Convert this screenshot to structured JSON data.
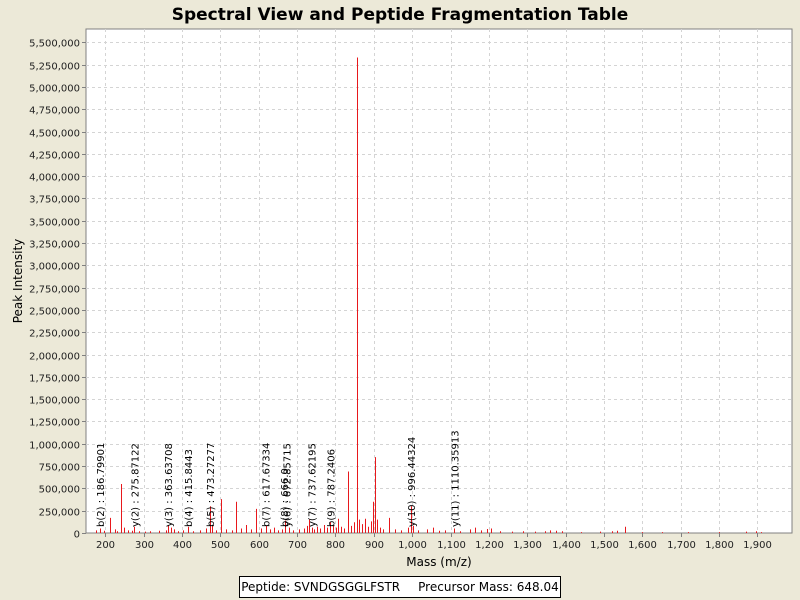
{
  "chart_data": {
    "type": "bar",
    "title": "Spectral View and Peptide Fragmentation Table",
    "xlabel": "Mass (m/z)",
    "ylabel": "Peak Intensity",
    "xlim": [
      150,
      1990
    ],
    "ylim": [
      0,
      5650000
    ],
    "xticks": [
      200,
      300,
      400,
      500,
      600,
      700,
      800,
      900,
      1000,
      1100,
      1200,
      1300,
      1400,
      1500,
      1600,
      1700,
      1800,
      1900
    ],
    "xtick_labels": [
      "200",
      "300",
      "400",
      "500",
      "600",
      "700",
      "800",
      "900",
      "1,000",
      "1,100",
      "1,200",
      "1,300",
      "1,400",
      "1,500",
      "1,600",
      "1,700",
      "1,800",
      "1,900"
    ],
    "yticks": [
      0,
      250000,
      500000,
      750000,
      1000000,
      1250000,
      1500000,
      1750000,
      2000000,
      2250000,
      2500000,
      2750000,
      3000000,
      3250000,
      3500000,
      3750000,
      4000000,
      4250000,
      4500000,
      4750000,
      5000000,
      5250000,
      5500000
    ],
    "ytick_labels": [
      "0",
      "250,000",
      "500,000",
      "750,000",
      "1,000,000",
      "1,250,000",
      "1,500,000",
      "1,750,000",
      "2,000,000",
      "2,250,000",
      "2,500,000",
      "2,750,000",
      "3,000,000",
      "3,250,000",
      "3,500,000",
      "3,750,000",
      "4,000,000",
      "4,250,000",
      "4,500,000",
      "4,750,000",
      "5,000,000",
      "5,250,000",
      "5,500,000"
    ],
    "grid": true,
    "peak_color": "#e8181c",
    "peaks": [
      {
        "mz": 175,
        "intensity": 30000
      },
      {
        "mz": 187,
        "intensity": 50000
      },
      {
        "mz": 196,
        "intensity": 25000
      },
      {
        "mz": 212,
        "intensity": 170000
      },
      {
        "mz": 225,
        "intensity": 40000
      },
      {
        "mz": 232,
        "intensity": 20000
      },
      {
        "mz": 241,
        "intensity": 550000
      },
      {
        "mz": 248,
        "intensity": 60000
      },
      {
        "mz": 259,
        "intensity": 30000
      },
      {
        "mz": 270,
        "intensity": 25000
      },
      {
        "mz": 276,
        "intensity": 70000
      },
      {
        "mz": 288,
        "intensity": 20000
      },
      {
        "mz": 305,
        "intensity": 15000
      },
      {
        "mz": 318,
        "intensity": 20000
      },
      {
        "mz": 340,
        "intensity": 25000
      },
      {
        "mz": 358,
        "intensity": 30000
      },
      {
        "mz": 364,
        "intensity": 90000
      },
      {
        "mz": 372,
        "intensity": 60000
      },
      {
        "mz": 380,
        "intensity": 40000
      },
      {
        "mz": 390,
        "intensity": 20000
      },
      {
        "mz": 402,
        "intensity": 30000
      },
      {
        "mz": 416,
        "intensity": 70000
      },
      {
        "mz": 430,
        "intensity": 20000
      },
      {
        "mz": 448,
        "intensity": 30000
      },
      {
        "mz": 462,
        "intensity": 50000
      },
      {
        "mz": 473,
        "intensity": 300000
      },
      {
        "mz": 478,
        "intensity": 80000
      },
      {
        "mz": 490,
        "intensity": 30000
      },
      {
        "mz": 503,
        "intensity": 380000
      },
      {
        "mz": 515,
        "intensity": 40000
      },
      {
        "mz": 530,
        "intensity": 30000
      },
      {
        "mz": 542,
        "intensity": 350000
      },
      {
        "mz": 555,
        "intensity": 50000
      },
      {
        "mz": 566,
        "intensity": 90000
      },
      {
        "mz": 580,
        "intensity": 40000
      },
      {
        "mz": 594,
        "intensity": 270000
      },
      {
        "mz": 606,
        "intensity": 50000
      },
      {
        "mz": 618,
        "intensity": 80000
      },
      {
        "mz": 630,
        "intensity": 40000
      },
      {
        "mz": 640,
        "intensity": 60000
      },
      {
        "mz": 651,
        "intensity": 30000
      },
      {
        "mz": 661,
        "intensity": 40000
      },
      {
        "mz": 668,
        "intensity": 140000
      },
      {
        "mz": 678,
        "intensity": 60000
      },
      {
        "mz": 690,
        "intensity": 30000
      },
      {
        "mz": 705,
        "intensity": 40000
      },
      {
        "mz": 718,
        "intensity": 50000
      },
      {
        "mz": 725,
        "intensity": 80000
      },
      {
        "mz": 730,
        "intensity": 150000
      },
      {
        "mz": 738,
        "intensity": 60000
      },
      {
        "mz": 745,
        "intensity": 40000
      },
      {
        "mz": 752,
        "intensity": 70000
      },
      {
        "mz": 760,
        "intensity": 50000
      },
      {
        "mz": 770,
        "intensity": 90000
      },
      {
        "mz": 778,
        "intensity": 60000
      },
      {
        "mz": 787,
        "intensity": 120000
      },
      {
        "mz": 795,
        "intensity": 80000
      },
      {
        "mz": 802,
        "intensity": 60000
      },
      {
        "mz": 808,
        "intensity": 160000
      },
      {
        "mz": 815,
        "intensity": 70000
      },
      {
        "mz": 822,
        "intensity": 50000
      },
      {
        "mz": 832,
        "intensity": 690000
      },
      {
        "mz": 840,
        "intensity": 80000
      },
      {
        "mz": 848,
        "intensity": 120000
      },
      {
        "mz": 855,
        "intensity": 5330000
      },
      {
        "mz": 856,
        "intensity": 1470000
      },
      {
        "mz": 862,
        "intensity": 150000
      },
      {
        "mz": 870,
        "intensity": 100000
      },
      {
        "mz": 878,
        "intensity": 160000
      },
      {
        "mz": 886,
        "intensity": 70000
      },
      {
        "mz": 893,
        "intensity": 130000
      },
      {
        "mz": 899,
        "intensity": 350000
      },
      {
        "mz": 903,
        "intensity": 850000
      },
      {
        "mz": 908,
        "intensity": 150000
      },
      {
        "mz": 915,
        "intensity": 60000
      },
      {
        "mz": 925,
        "intensity": 40000
      },
      {
        "mz": 940,
        "intensity": 170000
      },
      {
        "mz": 955,
        "intensity": 40000
      },
      {
        "mz": 970,
        "intensity": 30000
      },
      {
        "mz": 988,
        "intensity": 60000
      },
      {
        "mz": 996,
        "intensity": 300000
      },
      {
        "mz": 1002,
        "intensity": 80000
      },
      {
        "mz": 1015,
        "intensity": 30000
      },
      {
        "mz": 1040,
        "intensity": 40000
      },
      {
        "mz": 1055,
        "intensity": 60000
      },
      {
        "mz": 1070,
        "intensity": 25000
      },
      {
        "mz": 1085,
        "intensity": 30000
      },
      {
        "mz": 1110,
        "intensity": 50000
      },
      {
        "mz": 1125,
        "intensity": 20000
      },
      {
        "mz": 1150,
        "intensity": 40000
      },
      {
        "mz": 1165,
        "intensity": 60000
      },
      {
        "mz": 1180,
        "intensity": 30000
      },
      {
        "mz": 1195,
        "intensity": 45000
      },
      {
        "mz": 1205,
        "intensity": 50000
      },
      {
        "mz": 1230,
        "intensity": 20000
      },
      {
        "mz": 1260,
        "intensity": 15000
      },
      {
        "mz": 1290,
        "intensity": 20000
      },
      {
        "mz": 1320,
        "intensity": 15000
      },
      {
        "mz": 1345,
        "intensity": 20000
      },
      {
        "mz": 1360,
        "intensity": 30000
      },
      {
        "mz": 1375,
        "intensity": 25000
      },
      {
        "mz": 1390,
        "intensity": 20000
      },
      {
        "mz": 1440,
        "intensity": 10000
      },
      {
        "mz": 1490,
        "intensity": 15000
      },
      {
        "mz": 1520,
        "intensity": 20000
      },
      {
        "mz": 1535,
        "intensity": 25000
      },
      {
        "mz": 1555,
        "intensity": 70000
      },
      {
        "mz": 1600,
        "intensity": 10000
      },
      {
        "mz": 1650,
        "intensity": 10000
      },
      {
        "mz": 1720,
        "intensity": 10000
      },
      {
        "mz": 1800,
        "intensity": 10000
      },
      {
        "mz": 1870,
        "intensity": 15000
      },
      {
        "mz": 1895,
        "intensity": 20000
      },
      {
        "mz": 1910,
        "intensity": 10000
      }
    ],
    "annotations": [
      {
        "mz": 186.79901,
        "label": "b(2) : 186.79901"
      },
      {
        "mz": 275.87122,
        "label": "y(2) : 275.87122"
      },
      {
        "mz": 363.63708,
        "label": "y(3) : 363.63708"
      },
      {
        "mz": 415.8443,
        "label": "b(4) : 415.8443"
      },
      {
        "mz": 473.27277,
        "label": "b(5) : 473.27277"
      },
      {
        "mz": 617.67334,
        "label": "b(7) : 617.67334"
      },
      {
        "mz": 666.0,
        "label": "b(8) : 666.0"
      },
      {
        "mz": 672.85715,
        "label": "y(6) : 672.85715"
      },
      {
        "mz": 737.62195,
        "label": "y(7) : 737.62195"
      },
      {
        "mz": 787.2406,
        "label": "b(9) : 787.2406"
      },
      {
        "mz": 996.44324,
        "label": "y(10) : 996.44324"
      },
      {
        "mz": 1110.35913,
        "label": "y(11) : 1110.35913"
      }
    ]
  },
  "legend": {
    "peptide": "Peptide: SVNDGSGGLFSTR",
    "precursor": "Precursor Mass: 648.04"
  }
}
